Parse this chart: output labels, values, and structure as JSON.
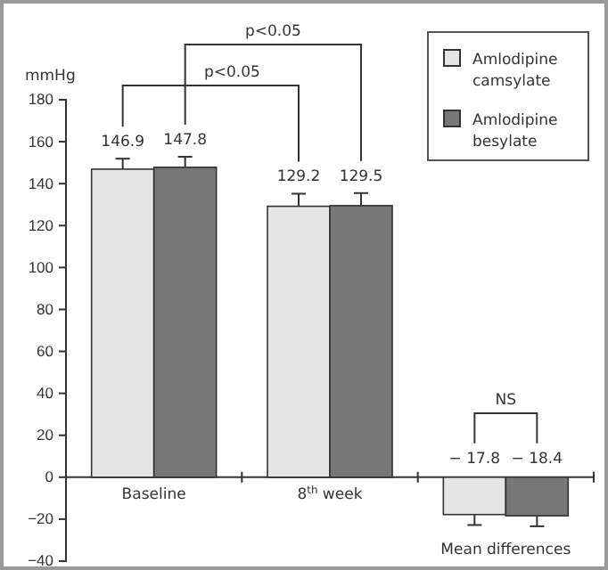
{
  "chart_data": {
    "type": "bar",
    "ylabel": "mmHg",
    "categories": [
      "Baseline",
      "8$^{th}$ week",
      "Mean differences"
    ],
    "series": [
      {
        "name": "Amlodipine camsylate",
        "color": "#e6e6e6",
        "values": [
          146.9,
          129.2,
          -17.8
        ],
        "errors": [
          5,
          6,
          5
        ]
      },
      {
        "name": "Amlodipine besylate",
        "color": "#777777",
        "values": [
          147.8,
          129.5,
          -18.4
        ],
        "errors": [
          5,
          6,
          5
        ]
      }
    ],
    "ylim": [
      -40,
      180
    ],
    "yticks": [
      -40,
      -20,
      0,
      20,
      40,
      60,
      80,
      100,
      120,
      140,
      160,
      180
    ],
    "data_labels": true,
    "legend": "top right",
    "grid": false,
    "annotations": [
      "p<0.05",
      "p<0.05",
      "NS"
    ]
  }
}
